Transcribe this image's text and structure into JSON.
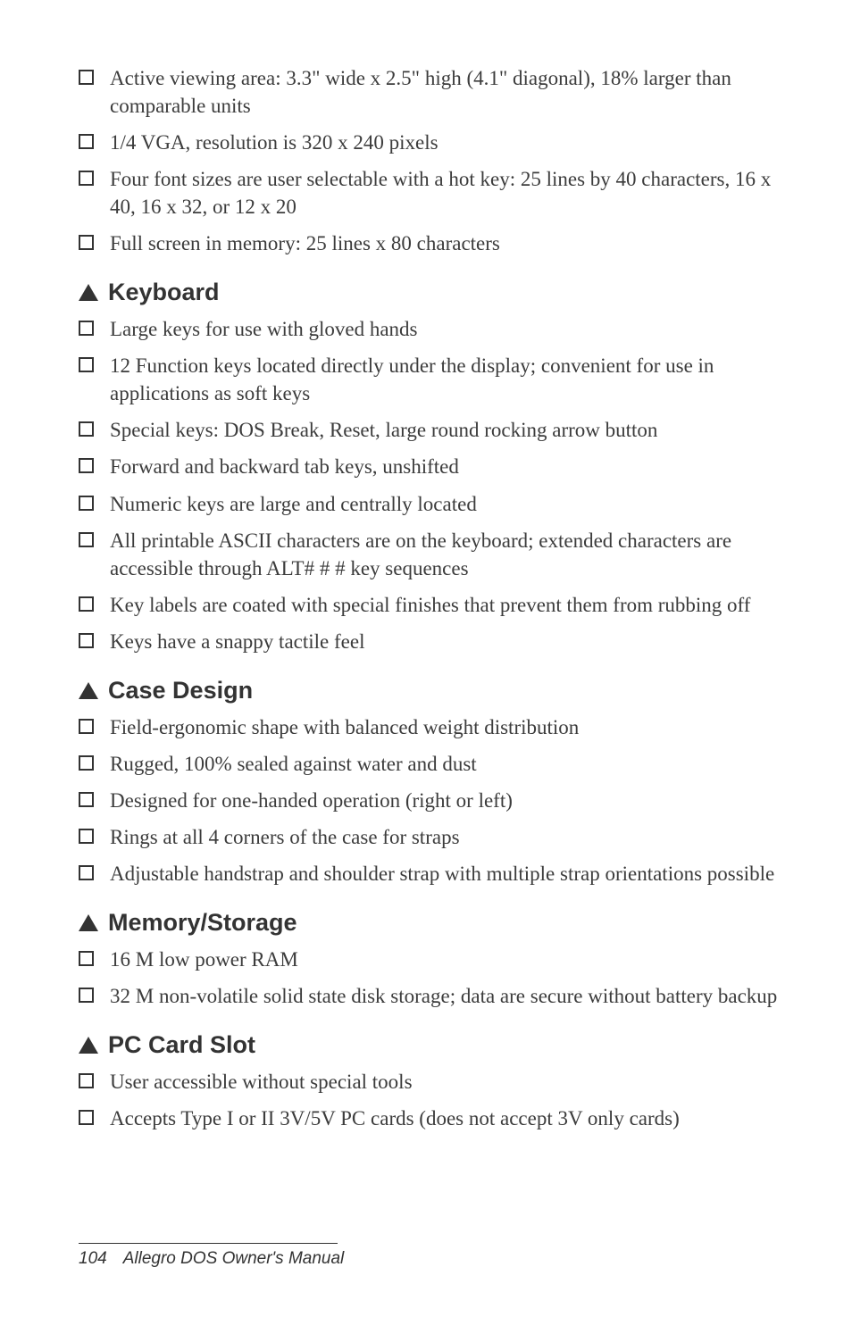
{
  "sections": [
    {
      "heading": null,
      "items": [
        "Active viewing area: 3.3\" wide x 2.5\" high (4.1\" diagonal), 18% larger than comparable units",
        "1/4 VGA, resolution is 320 x 240 pixels",
        "Four font sizes are user selectable with a hot key: 25 lines by 40 characters, 16 x 40, 16 x 32, or 12 x 20",
        "Full screen in memory: 25 lines x 80 characters"
      ]
    },
    {
      "heading": "Keyboard",
      "items": [
        "Large keys for use with gloved hands",
        "12 Function keys located directly under the display; convenient for use in applications as soft keys",
        "Special keys: DOS Break, Reset, large round rocking arrow button",
        "Forward and backward tab keys, unshifted",
        "Numeric keys are large and centrally located",
        "All printable ASCII characters are on the keyboard; extended characters are accessible through ALT# # # key sequences",
        "Key labels are coated with special finishes that prevent them from rubbing off",
        "Keys have a snappy tactile feel"
      ]
    },
    {
      "heading": "Case Design",
      "items": [
        "Field-ergonomic shape with balanced weight distribution",
        "Rugged, 100% sealed against water and dust",
        "Designed for one-handed operation (right or left)",
        "Rings at all 4 corners of the case for straps",
        "Adjustable handstrap and shoulder strap with multiple strap orientations possible"
      ]
    },
    {
      "heading": "Memory/Storage",
      "items": [
        "16 M low power RAM",
        "32 M non-volatile solid state disk storage; data are secure without battery backup"
      ]
    },
    {
      "heading": "PC Card Slot",
      "items": [
        "User accessible without special tools",
        "Accepts Type I or II 3V/5V PC cards (does not accept 3V only cards)"
      ]
    }
  ],
  "footer": {
    "page": "104",
    "title": "Allegro DOS Owner's Manual"
  }
}
